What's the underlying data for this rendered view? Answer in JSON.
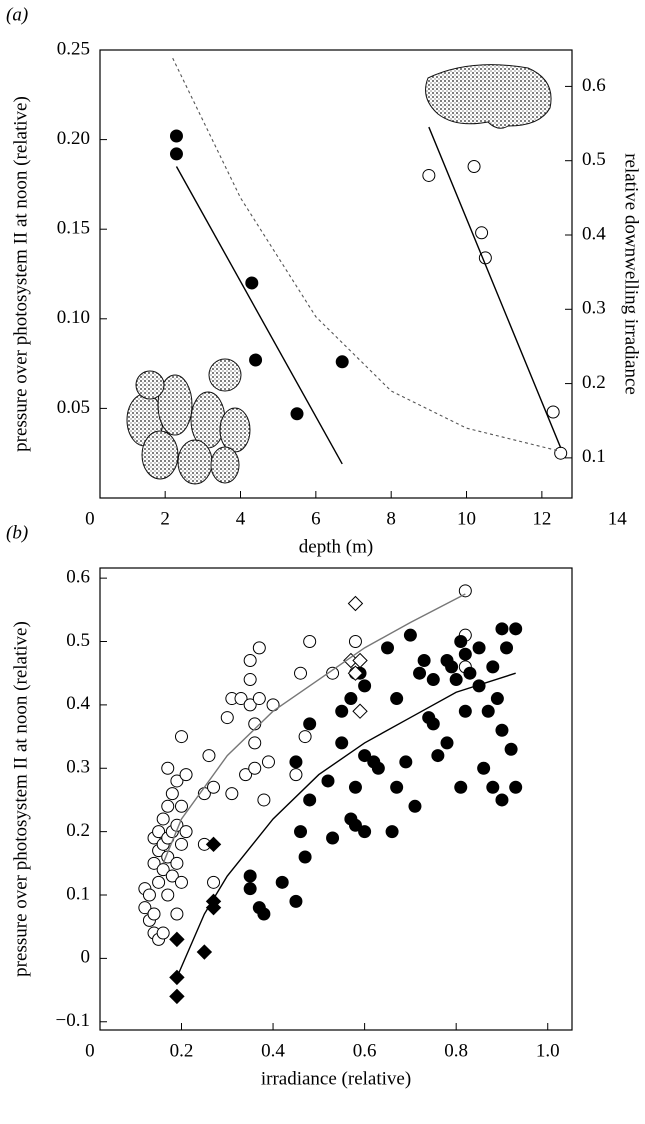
{
  "chart_data": [
    {
      "type": "scatter",
      "panel_label": "(a)",
      "x_label": "depth (m)",
      "y_label": "pressure over photosystem II at noon (relative)",
      "y2_label": "relative downwelling irradiance",
      "xlim": [
        0.27,
        12.8
      ],
      "xticks": [
        0,
        2,
        4,
        6,
        8,
        10,
        12,
        14
      ],
      "ylim": [
        0,
        0.25
      ],
      "yticks": [
        0.05,
        {
          "value": 0.1,
          "label": "0.10"
        },
        0.15,
        {
          "value": 0.2,
          "label": "0.20"
        },
        0.25
      ],
      "y2lim": [
        0.046,
        0.649
      ],
      "y2ticks": [
        0.1,
        0.2,
        0.3,
        0.4,
        0.5,
        0.6
      ],
      "series": [
        {
          "style": "filled-circle",
          "color": "#000000",
          "x": [
            2.3,
            2.3,
            4.3,
            4.4,
            5.5,
            6.7
          ],
          "values": [
            0.202,
            0.192,
            0.12,
            0.077,
            0.047,
            0.076
          ]
        },
        {
          "style": "open-circle",
          "color": "#000000",
          "x": [
            9.0,
            10.2,
            10.4,
            10.5,
            12.3,
            12.5
          ],
          "values": [
            0.18,
            0.185,
            0.148,
            0.134,
            0.048,
            0.025
          ]
        },
        {
          "style": "line",
          "color": "#000000",
          "x": [
            2.3,
            6.7
          ],
          "values": [
            0.185,
            0.019
          ]
        },
        {
          "style": "line",
          "color": "#000000",
          "x": [
            9.0,
            12.5
          ],
          "values": [
            0.207,
            0.028
          ]
        },
        {
          "style": "dashed-line",
          "color": "#555555",
          "axis": "y2",
          "x": [
            2.2,
            4,
            6,
            8,
            10,
            12.4
          ],
          "values": [
            0.638,
            0.45,
            0.29,
            0.19,
            0.14,
            0.11
          ]
        }
      ]
    },
    {
      "type": "scatter",
      "panel_label": "(b)",
      "x_label": "irradiance (relative)",
      "y_label": "pressure over photosystem II at noon (relative)",
      "xlim": [
        0.022,
        1.053
      ],
      "xticks": [
        0,
        0.2,
        0.4,
        0.6,
        0.8,
        {
          "value": 1,
          "label": "1.0"
        }
      ],
      "ylim": [
        -0.113,
        0.616
      ],
      "yticks": [
        {
          "value": -0.1,
          "label": "−0.1"
        },
        0,
        0.1,
        0.2,
        0.3,
        0.4,
        0.5,
        0.6
      ],
      "series": [
        {
          "style": "open-circle",
          "color": "#000000",
          "x": [
            0.12,
            0.12,
            0.13,
            0.13,
            0.14,
            0.14,
            0.14,
            0.14,
            0.15,
            0.15,
            0.15,
            0.15,
            0.16,
            0.16,
            0.16,
            0.16,
            0.17,
            0.17,
            0.17,
            0.17,
            0.17,
            0.18,
            0.18,
            0.18,
            0.19,
            0.19,
            0.19,
            0.19,
            0.2,
            0.2,
            0.2,
            0.2,
            0.21,
            0.21,
            0.25,
            0.25,
            0.26,
            0.27,
            0.27,
            0.3,
            0.31,
            0.31,
            0.33,
            0.34,
            0.35,
            0.35,
            0.35,
            0.36,
            0.36,
            0.36,
            0.37,
            0.37,
            0.38,
            0.39,
            0.4,
            0.45,
            0.46,
            0.47,
            0.48,
            0.53,
            0.58,
            0.58,
            0.82,
            0.82,
            0.82
          ],
          "values": [
            0.11,
            0.08,
            0.06,
            0.1,
            0.04,
            0.07,
            0.15,
            0.19,
            0.03,
            0.12,
            0.17,
            0.2,
            0.14,
            0.18,
            0.22,
            0.04,
            0.1,
            0.16,
            0.19,
            0.24,
            0.3,
            0.13,
            0.2,
            0.26,
            0.07,
            0.15,
            0.21,
            0.28,
            0.12,
            0.18,
            0.24,
            0.35,
            0.2,
            0.29,
            0.18,
            0.26,
            0.32,
            0.12,
            0.27,
            0.38,
            0.41,
            0.26,
            0.41,
            0.29,
            0.4,
            0.44,
            0.47,
            0.34,
            0.3,
            0.37,
            0.41,
            0.49,
            0.25,
            0.31,
            0.4,
            0.29,
            0.45,
            0.35,
            0.5,
            0.45,
            0.5,
            0.45,
            0.58,
            0.51,
            0.46
          ]
        },
        {
          "style": "filled-circle",
          "color": "#000000",
          "x": [
            0.35,
            0.35,
            0.37,
            0.38,
            0.42,
            0.45,
            0.45,
            0.46,
            0.47,
            0.48,
            0.48,
            0.52,
            0.53,
            0.55,
            0.55,
            0.57,
            0.57,
            0.58,
            0.58,
            0.59,
            0.6,
            0.6,
            0.6,
            0.62,
            0.63,
            0.65,
            0.66,
            0.67,
            0.67,
            0.69,
            0.7,
            0.71,
            0.72,
            0.73,
            0.74,
            0.75,
            0.75,
            0.76,
            0.78,
            0.78,
            0.79,
            0.8,
            0.81,
            0.81,
            0.82,
            0.82,
            0.83,
            0.85,
            0.85,
            0.86,
            0.87,
            0.88,
            0.88,
            0.89,
            0.9,
            0.9,
            0.9,
            0.91,
            0.92,
            0.93,
            0.93
          ],
          "values": [
            0.11,
            0.13,
            0.08,
            0.07,
            0.12,
            0.09,
            0.31,
            0.2,
            0.16,
            0.25,
            0.37,
            0.28,
            0.19,
            0.34,
            0.39,
            0.41,
            0.22,
            0.21,
            0.27,
            0.45,
            0.32,
            0.2,
            0.43,
            0.31,
            0.3,
            0.49,
            0.2,
            0.27,
            0.41,
            0.31,
            0.51,
            0.24,
            0.45,
            0.47,
            0.38,
            0.44,
            0.37,
            0.32,
            0.34,
            0.47,
            0.46,
            0.44,
            0.27,
            0.5,
            0.48,
            0.39,
            0.45,
            0.49,
            0.43,
            0.3,
            0.39,
            0.46,
            0.27,
            0.41,
            0.52,
            0.25,
            0.36,
            0.49,
            0.33,
            0.52,
            0.27
          ]
        },
        {
          "style": "filled-diamond",
          "color": "#000000",
          "x": [
            0.19,
            0.19,
            0.19,
            0.25,
            0.27,
            0.27,
            0.27
          ],
          "values": [
            0.03,
            -0.03,
            -0.06,
            0.01,
            0.18,
            0.09,
            0.08
          ]
        },
        {
          "style": "open-diamond",
          "color": "#000000",
          "x": [
            0.58,
            0.57,
            0.58,
            0.59,
            0.59
          ],
          "values": [
            0.56,
            0.47,
            0.45,
            0.47,
            0.39
          ]
        },
        {
          "style": "line",
          "color": "#777777",
          "x": [
            0.16,
            0.2,
            0.3,
            0.4,
            0.5,
            0.6,
            0.7,
            0.82
          ],
          "values": [
            0.15,
            0.22,
            0.32,
            0.39,
            0.44,
            0.49,
            0.53,
            0.575
          ]
        },
        {
          "style": "line",
          "color": "#000000",
          "x": [
            0.19,
            0.25,
            0.3,
            0.4,
            0.5,
            0.6,
            0.7,
            0.8,
            0.93
          ],
          "values": [
            -0.03,
            0.07,
            0.13,
            0.22,
            0.29,
            0.34,
            0.38,
            0.42,
            0.45
          ]
        }
      ]
    }
  ]
}
